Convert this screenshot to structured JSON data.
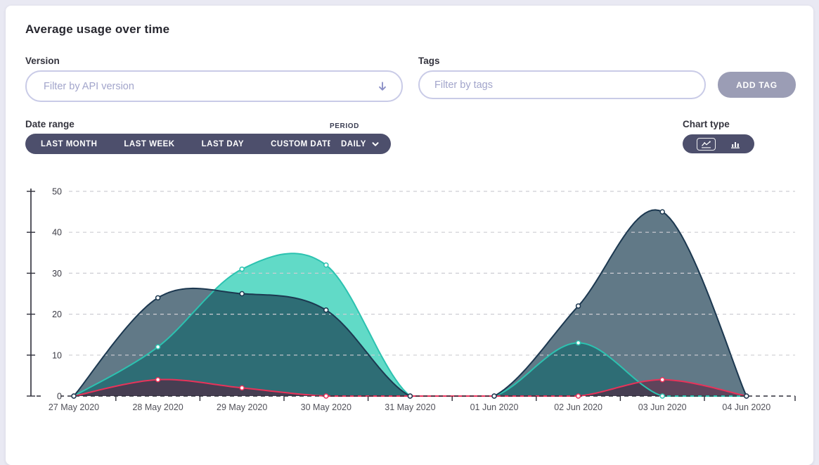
{
  "card": {
    "title": "Average usage over time"
  },
  "filters": {
    "version": {
      "label": "Version",
      "placeholder": "Filter by API version"
    },
    "tags": {
      "label": "Tags",
      "placeholder": "Filter by tags",
      "add_button_label": "ADD TAG"
    }
  },
  "date_range": {
    "label": "Date range",
    "buttons": [
      {
        "label": "LAST MONTH"
      },
      {
        "label": "LAST WEEK"
      },
      {
        "label": "LAST DAY"
      },
      {
        "label": "CUSTOM DATE"
      }
    ]
  },
  "period": {
    "label": "PERIOD",
    "value": "DAILY"
  },
  "chart_type": {
    "label": "Chart type",
    "selected": "line-chart",
    "icons": [
      "line-chart-icon",
      "bar-chart-icon"
    ],
    "download_icon": "download-icon"
  },
  "chart_data": {
    "type": "area",
    "title": "Average usage over time",
    "x_labels": [
      "27 May 2020",
      "28 May 2020",
      "29 May 2020",
      "30 May 2020",
      "31 May 2020",
      "01 Jun 2020",
      "02 Jun 2020",
      "03 Jun 2020",
      "04 Jun 2020"
    ],
    "y_ticks": [
      0,
      10,
      20,
      30,
      40,
      50
    ],
    "ylim": [
      0,
      50
    ],
    "grid": "dashed-horizontal",
    "legend": "none",
    "series": [
      {
        "name": "teal-series",
        "line_color": "#2cc2b0",
        "fill_color": "rgba(44,205,180,0.75)",
        "values": [
          0,
          12,
          31,
          32,
          0,
          0,
          13,
          0,
          0
        ]
      },
      {
        "name": "dark-series",
        "line_color": "#1c3850",
        "fill_color": "rgba(22,57,78,0.68)",
        "values": [
          0,
          24,
          25,
          21,
          0,
          0,
          22,
          45,
          0
        ]
      },
      {
        "name": "red-series",
        "line_color": "#e8335a",
        "fill_color": "rgba(94,16,48,0.5)",
        "values": [
          0,
          4,
          2,
          0,
          0,
          0,
          0,
          4,
          0
        ]
      }
    ],
    "marker_draw_order": [
      0,
      2,
      1
    ]
  },
  "colors": {
    "page_bg": "#e9e9f3",
    "dark_pill": "#4d4f6c",
    "add_tag_bg": "#9b9db5",
    "input_border": "#c9cbe7",
    "grid_line": "#cdcdd3",
    "axis_line": "#2d2d38"
  }
}
